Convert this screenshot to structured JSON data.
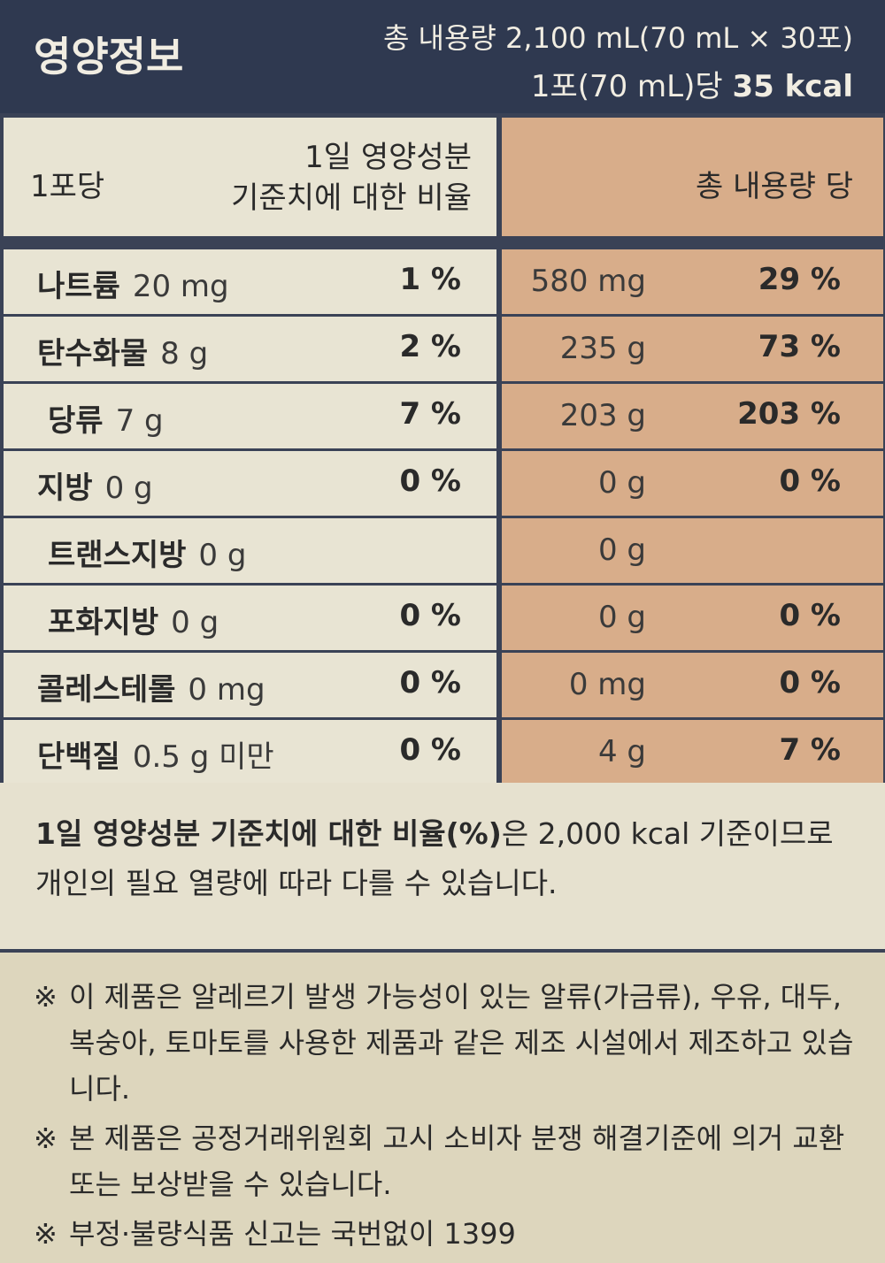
{
  "header": {
    "title": "영양정보",
    "total": "총 내용량 2,100 mL(70 mL × 30포)",
    "per_serving": "1포(70 mL)당",
    "kcal": "35 kcal"
  },
  "table": {
    "head": {
      "per_pack": "1포당",
      "daily_ratio": [
        "1일 영양성분",
        "기준치에 대한 비율"
      ],
      "per_total": "총 내용량 당"
    },
    "rows": [
      {
        "name": "나트륨",
        "amount": "20 mg",
        "pct": "1 %",
        "total_amount": "580 mg",
        "total_pct": "29 %"
      },
      {
        "name": "탄수화물",
        "amount": "8 g",
        "pct": "2 %",
        "total_amount": "235 g",
        "total_pct": "73 %"
      },
      {
        "name": "당류",
        "amount": "7 g",
        "pct": "7 %",
        "total_amount": "203 g",
        "total_pct": "203 %",
        "sub": true
      },
      {
        "name": "지방",
        "amount": "0 g",
        "pct": "0 %",
        "total_amount": "0 g",
        "total_pct": "0 %"
      },
      {
        "name": "트랜스지방",
        "amount": "0 g",
        "total_amount": "0 g",
        "sub": true
      },
      {
        "name": "포화지방",
        "amount": "0 g",
        "pct": "0 %",
        "total_amount": "0 g",
        "total_pct": "0 %",
        "sub": true
      },
      {
        "name": "콜레스테롤",
        "amount": "0 mg",
        "pct": "0 %",
        "total_amount": "0 mg",
        "total_pct": "0 %"
      },
      {
        "name": "단백질",
        "amount": "0.5 g 미만",
        "pct": "0 %",
        "total_amount": "4 g",
        "total_pct": "7 %"
      }
    ]
  },
  "note": {
    "bold": "1일 영양성분 기준치에 대한 비율(%)",
    "text": "은 2,000 kcal 기준이므로 개인의 필요 열량에 따라 다를 수 있습니다."
  },
  "warnings": [
    {
      "mark": "※",
      "text": "이 제품은 알레르기 발생 가능성이 있는 알류(가금류), 우유, 대두, 복숭아, 토마토를 사용한 제품과 같은 제조 시설에서 제조하고 있습니다."
    },
    {
      "mark": "※",
      "text": "본 제품은 공정거래위원회 고시 소비자 분쟁 해결기준에 의거 교환 또는 보상받을 수 있습니다."
    },
    {
      "mark": "※",
      "text": "부정·불량식품 신고는 국번없이 1399"
    }
  ]
}
